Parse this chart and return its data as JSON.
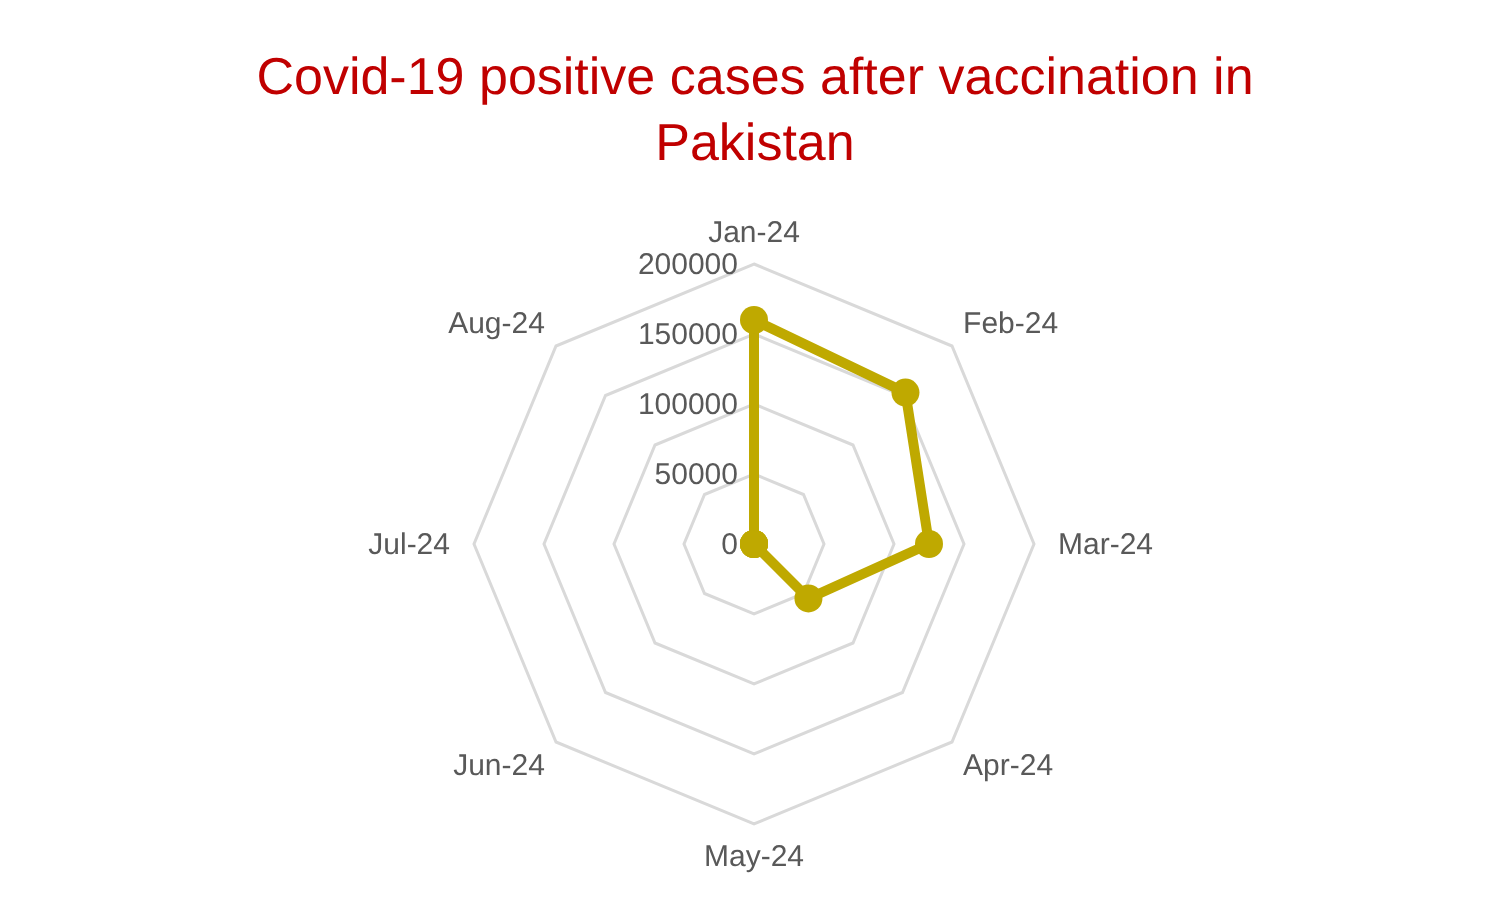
{
  "chart_data": {
    "type": "radar",
    "title": "Covid-19 positive cases after vaccination in Pakistan",
    "categories": [
      "Jan-24",
      "Feb-24",
      "Mar-24",
      "Apr-24",
      "May-24",
      "Jun-24",
      "Jul-24",
      "Aug-24"
    ],
    "series": [
      {
        "color": "#bfa900",
        "values": [
          160000,
          153000,
          125000,
          55000,
          0,
          0,
          0,
          0
        ]
      }
    ],
    "ylim": [
      0,
      200000
    ],
    "yticks": [
      0,
      50000,
      100000,
      150000,
      200000
    ],
    "grid": true,
    "marker": "circle"
  }
}
